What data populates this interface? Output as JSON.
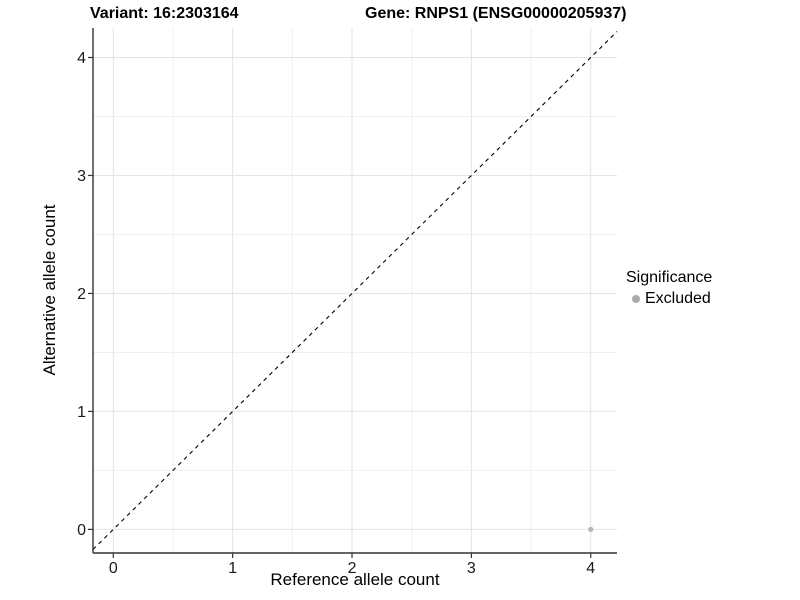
{
  "titles": {
    "variant": "Variant: 16:2303164",
    "gene": "Gene: RNPS1 (ENSG00000205937)"
  },
  "chart_data": {
    "type": "scatter",
    "xlabel": "Reference allele count",
    "ylabel": "Alternative allele count",
    "xlim": [
      -0.17,
      4.22
    ],
    "ylim": [
      -0.2,
      4.25
    ],
    "x_ticks": [
      0,
      1,
      2,
      3,
      4
    ],
    "y_ticks": [
      0,
      1,
      2,
      3,
      4
    ],
    "x_minor": [
      0.5,
      1.5,
      2.5,
      3.5
    ],
    "y_minor": [
      0.5,
      1.5,
      2.5,
      3.5
    ],
    "grid": true,
    "reference_line": {
      "type": "identity",
      "slope": 1,
      "intercept": 0,
      "style": "dashed",
      "color": "#000000"
    },
    "series": [
      {
        "name": "Excluded",
        "color": "#b5b5b5",
        "points": [
          {
            "x": 4,
            "y": 0
          }
        ]
      }
    ],
    "legend": {
      "title": "Significance",
      "position": "right",
      "items": [
        {
          "label": "Excluded",
          "color": "#ababab"
        }
      ]
    }
  },
  "colors": {
    "background": "#ffffff",
    "grid_major": "#e4e4e4",
    "grid_minor": "#f0f0f0",
    "axis": "#333333",
    "tick_text": "#1a1a1a",
    "title_text": "#000000"
  }
}
